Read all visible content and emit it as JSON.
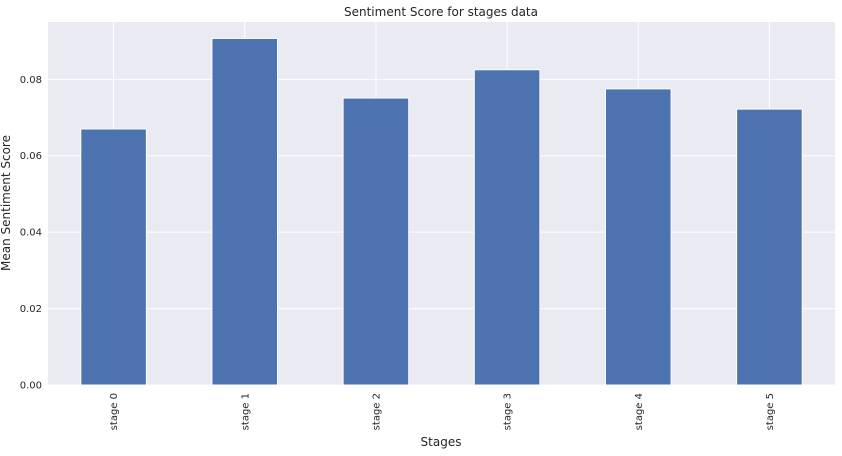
{
  "chart_data": {
    "type": "bar",
    "title": "Sentiment Score for stages data",
    "xlabel": "Stages",
    "ylabel": "Mean Sentiment Score",
    "categories": [
      "stage 0",
      "stage 1",
      "stage 2",
      "stage 3",
      "stage 4",
      "stage 5"
    ],
    "values": [
      0.067,
      0.0907,
      0.0751,
      0.0825,
      0.0775,
      0.0722
    ],
    "ylim": [
      0,
      0.095
    ],
    "yticks": [
      0.0,
      0.02,
      0.04,
      0.06,
      0.08
    ],
    "ytick_labels": [
      "0.00",
      "0.02",
      "0.04",
      "0.06",
      "0.08"
    ],
    "grid": true,
    "colors": {
      "bar": "#4c72b0",
      "background": "#eaeaf2",
      "grid": "#ffffff"
    }
  }
}
